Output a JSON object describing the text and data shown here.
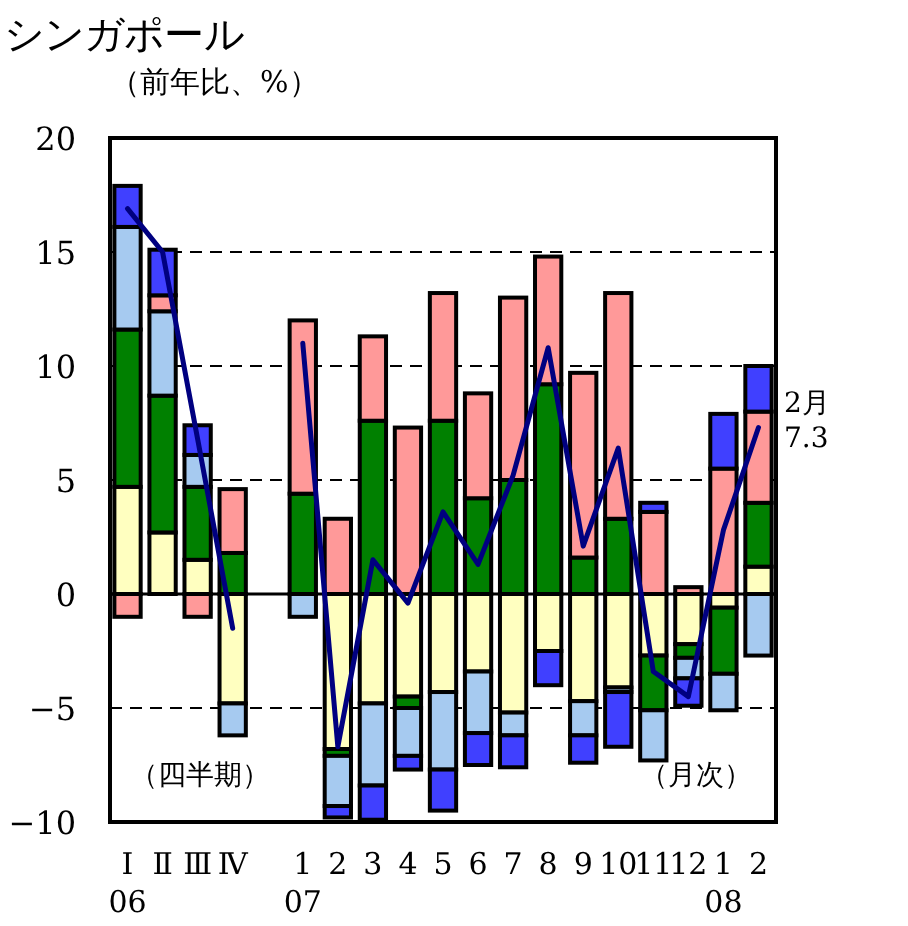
{
  "chart_data": {
    "type": "bar",
    "stacked": true,
    "title": "シンガポール",
    "subtitle": "（前年比、%）",
    "categories": [
      "Ⅰ\n06",
      "Ⅱ",
      "Ⅲ",
      "Ⅳ",
      null,
      "1\n07",
      "2",
      "3",
      "4",
      "5",
      "6",
      "7",
      "8",
      "9",
      "10",
      "11",
      "12",
      "1\n08",
      "2"
    ],
    "series": [
      {
        "color": "#ffffc0",
        "values": [
          4.7,
          2.7,
          1.5,
          -4.8,
          null,
          null,
          -6.8,
          -4.8,
          -4.5,
          -4.3,
          -3.4,
          -5.2,
          -2.5,
          -4.7,
          -4.1,
          -2.7,
          -2.2,
          -0.6,
          1.2
        ]
      },
      {
        "color": "#008000",
        "values": [
          6.9,
          6.0,
          3.2,
          1.8,
          null,
          4.4,
          -0.3,
          7.6,
          -0.5,
          7.6,
          4.2,
          5.0,
          9.2,
          1.6,
          3.3,
          -2.4,
          -0.6,
          -2.9,
          2.8
        ]
      },
      {
        "color": "#a6caf0",
        "values": [
          4.5,
          3.7,
          1.4,
          -1.4,
          null,
          -1.0,
          -2.2,
          -3.6,
          -2.1,
          -3.4,
          -2.7,
          -1.0,
          null,
          -1.5,
          -0.2,
          -2.2,
          -0.9,
          -1.6,
          -2.7
        ]
      },
      {
        "color": "#ff9999",
        "values": [
          -1.0,
          0.7,
          -1.0,
          2.8,
          null,
          7.6,
          3.3,
          3.7,
          7.3,
          5.6,
          4.6,
          8.0,
          5.6,
          8.1,
          9.9,
          3.6,
          0.3,
          5.5,
          4.0
        ]
      },
      {
        "color": "#4040ff",
        "values": [
          1.8,
          2.0,
          1.3,
          null,
          null,
          null,
          -0.5,
          -1.5,
          -0.6,
          -1.8,
          -1.4,
          -1.4,
          -1.5,
          -1.2,
          -2.4,
          0.4,
          -1.2,
          2.4,
          2.0
        ]
      },
      {
        "type": "line",
        "color": "#000080",
        "values": [
          16.9,
          15.0,
          6.8,
          -1.5,
          null,
          11.0,
          -6.7,
          1.5,
          -0.4,
          3.6,
          1.3,
          5.2,
          10.8,
          2.1,
          6.4,
          -3.4,
          -4.5,
          2.8,
          7.3
        ]
      }
    ],
    "ylim": [
      -10,
      20
    ],
    "yticks": [
      -10,
      -5,
      0,
      5,
      10,
      15,
      20
    ],
    "grid": "y",
    "annotations": [
      "（四半期）",
      "（月次）",
      "2月\n7.3"
    ]
  }
}
